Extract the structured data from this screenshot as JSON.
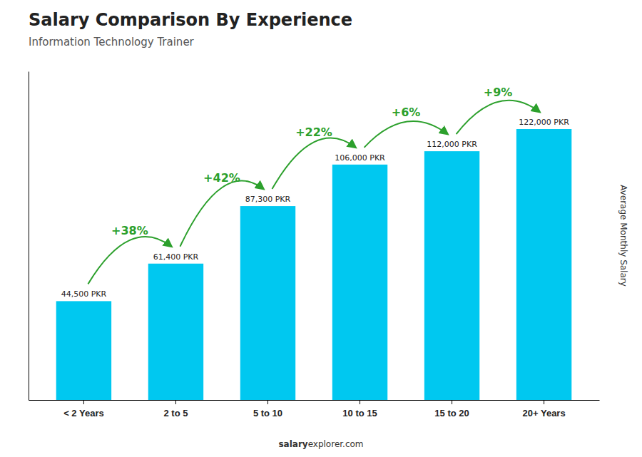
{
  "chart_data": {
    "type": "bar",
    "title": "Salary Comparison By Experience",
    "subtitle": "Information Technology Trainer",
    "ylabel": "Average Monthly Salary",
    "categories": [
      "< 2 Years",
      "2 to 5",
      "5 to 10",
      "10 to 15",
      "15 to 20",
      "20+ Years"
    ],
    "values": [
      44500,
      61400,
      87300,
      106000,
      112000,
      122000
    ],
    "value_labels": [
      "44,500 PKR",
      "61,400 PKR",
      "87,300 PKR",
      "106,000 PKR",
      "112,000 PKR",
      "122,000 PKR"
    ],
    "data_labels": true,
    "annotations": [
      "+38%",
      "+42%",
      "+22%",
      "+6%",
      "+9%"
    ],
    "footer": [
      "salary",
      "explorer.com"
    ],
    "color": "#00c8f0",
    "ylim": [
      0,
      148000
    ],
    "tick_labels": "x",
    "grid": false
  }
}
